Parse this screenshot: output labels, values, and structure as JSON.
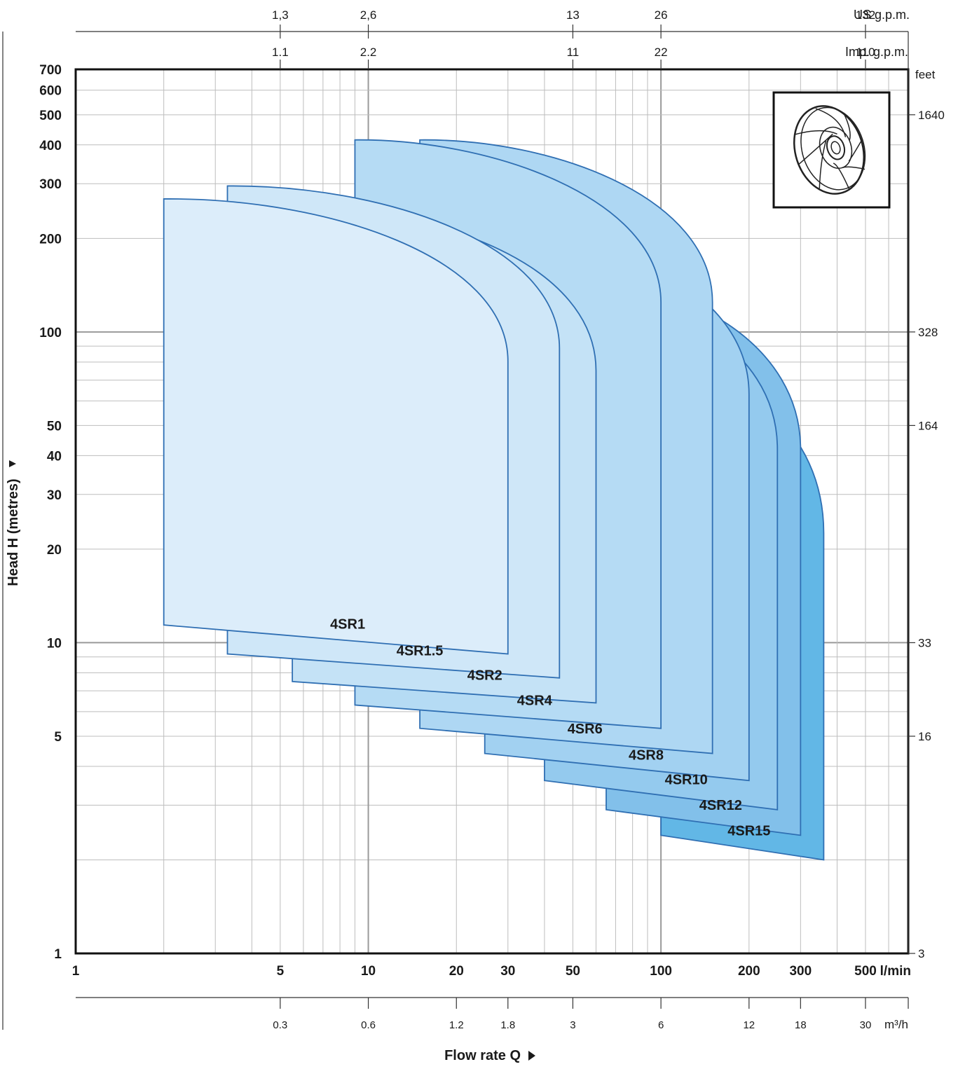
{
  "chart_data": {
    "type": "area",
    "title": "",
    "xlabel": "Flow rate Q",
    "ylabel": "Head H (metres)",
    "x_scale": "log",
    "y_scale": "log",
    "xlim": [
      1,
      700
    ],
    "ylim": [
      1,
      700
    ],
    "x_unit": "l/min",
    "x_ticks": [
      {
        "v": 1,
        "label": "1"
      },
      {
        "v": 5,
        "label": "5"
      },
      {
        "v": 10,
        "label": "10"
      },
      {
        "v": 20,
        "label": "20"
      },
      {
        "v": 30,
        "label": "30"
      },
      {
        "v": 50,
        "label": "50"
      },
      {
        "v": 100,
        "label": "100"
      },
      {
        "v": 200,
        "label": "200"
      },
      {
        "v": 300,
        "label": "300"
      },
      {
        "v": 500,
        "label": "500"
      }
    ],
    "y_ticks": [
      {
        "v": 1,
        "label": "1"
      },
      {
        "v": 5,
        "label": "5"
      },
      {
        "v": 10,
        "label": "10"
      },
      {
        "v": 20,
        "label": "20"
      },
      {
        "v": 30,
        "label": "30"
      },
      {
        "v": 40,
        "label": "40"
      },
      {
        "v": 50,
        "label": "50"
      },
      {
        "v": 100,
        "label": "100"
      },
      {
        "v": 200,
        "label": "200"
      },
      {
        "v": 300,
        "label": "300"
      },
      {
        "v": 400,
        "label": "400"
      },
      {
        "v": 500,
        "label": "500"
      },
      {
        "v": 600,
        "label": "600"
      },
      {
        "v": 700,
        "label": "700"
      }
    ],
    "secondary_axes": {
      "feet": {
        "unit": "feet",
        "ticks": [
          {
            "v": 1,
            "label": "3"
          },
          {
            "v": 5,
            "label": "16"
          },
          {
            "v": 10,
            "label": "33"
          },
          {
            "v": 50,
            "label": "164"
          },
          {
            "v": 100,
            "label": "328"
          },
          {
            "v": 500,
            "label": "1640"
          }
        ]
      },
      "m3h": {
        "unit": "m³/h",
        "ticks": [
          {
            "v": 5,
            "label": "0.3"
          },
          {
            "v": 10,
            "label": "0.6"
          },
          {
            "v": 20,
            "label": "1.2"
          },
          {
            "v": 30,
            "label": "1.8"
          },
          {
            "v": 50,
            "label": "3"
          },
          {
            "v": 100,
            "label": "6"
          },
          {
            "v": 200,
            "label": "12"
          },
          {
            "v": 300,
            "label": "18"
          },
          {
            "v": 500,
            "label": "30"
          }
        ]
      },
      "us_gpm": {
        "unit": "US g.p.m.",
        "ticks": [
          {
            "v": 5,
            "label": "1,3"
          },
          {
            "v": 10,
            "label": "2,6"
          },
          {
            "v": 50,
            "label": "13"
          },
          {
            "v": 100,
            "label": "26"
          },
          {
            "v": 500,
            "label": "132"
          }
        ]
      },
      "imp_gpm": {
        "unit": "Imp. g.p.m.",
        "ticks": [
          {
            "v": 5,
            "label": "1.1"
          },
          {
            "v": 10,
            "label": "2.2"
          },
          {
            "v": 50,
            "label": "11"
          },
          {
            "v": 100,
            "label": "22"
          },
          {
            "v": 500,
            "label": "110"
          }
        ]
      }
    },
    "series": [
      {
        "name": "4SR15",
        "q_min": 100,
        "q_max": 360,
        "h_bottom_left": 2.4,
        "h_bottom_right": 2.0,
        "h_top": 75,
        "q_bend": 300,
        "color": "#62b7e6",
        "label_at": [
          200,
          2.4
        ]
      },
      {
        "name": "4SR12",
        "q_min": 65,
        "q_max": 300,
        "h_bottom_left": 2.9,
        "h_bottom_right": 2.4,
        "h_top": 140,
        "q_bend": 200,
        "color": "#82c0ea",
        "label_at": [
          160,
          2.9
        ]
      },
      {
        "name": "4SR10",
        "q_min": 40,
        "q_max": 250,
        "h_bottom_left": 3.6,
        "h_bottom_right": 2.9,
        "h_top": 140,
        "q_bend": 200,
        "color": "#94caee",
        "label_at": [
          122,
          3.5
        ]
      },
      {
        "name": "4SR8",
        "q_min": 25,
        "q_max": 200,
        "h_bottom_left": 4.4,
        "h_bottom_right": 3.6,
        "h_top": 210,
        "q_bend": 150,
        "color": "#a2d1f1",
        "label_at": [
          89,
          4.2
        ]
      },
      {
        "name": "4SR6",
        "q_min": 15,
        "q_max": 150,
        "h_bottom_left": 5.3,
        "h_bottom_right": 4.4,
        "h_top": 415,
        "q_bend": 100,
        "color": "#aed7f3",
        "label_at": [
          55,
          5.1
        ]
      },
      {
        "name": "4SR4",
        "q_min": 9,
        "q_max": 100,
        "h_bottom_left": 6.3,
        "h_bottom_right": 5.3,
        "h_top": 415,
        "q_bend": 60,
        "color": "#b5dbf4",
        "label_at": [
          37,
          6.3
        ]
      },
      {
        "name": "4SR2",
        "q_min": 5.5,
        "q_max": 60,
        "h_bottom_left": 7.5,
        "h_bottom_right": 6.4,
        "h_top": 250,
        "q_bend": 45,
        "color": "#c4e2f6",
        "label_at": [
          25,
          7.6
        ]
      },
      {
        "name": "4SR1.5",
        "q_min": 3.3,
        "q_max": 45,
        "h_bottom_left": 9.2,
        "h_bottom_right": 7.7,
        "h_top": 295,
        "q_bend": 30,
        "color": "#cfe7f8",
        "label_at": [
          15,
          9.1
        ]
      },
      {
        "name": "4SR1",
        "q_min": 2,
        "q_max": 30,
        "h_bottom_left": 11.4,
        "h_bottom_right": 9.2,
        "h_top": 268,
        "q_bend": 20,
        "color": "#dcedfa",
        "label_at": [
          8.5,
          11.1
        ]
      }
    ]
  }
}
